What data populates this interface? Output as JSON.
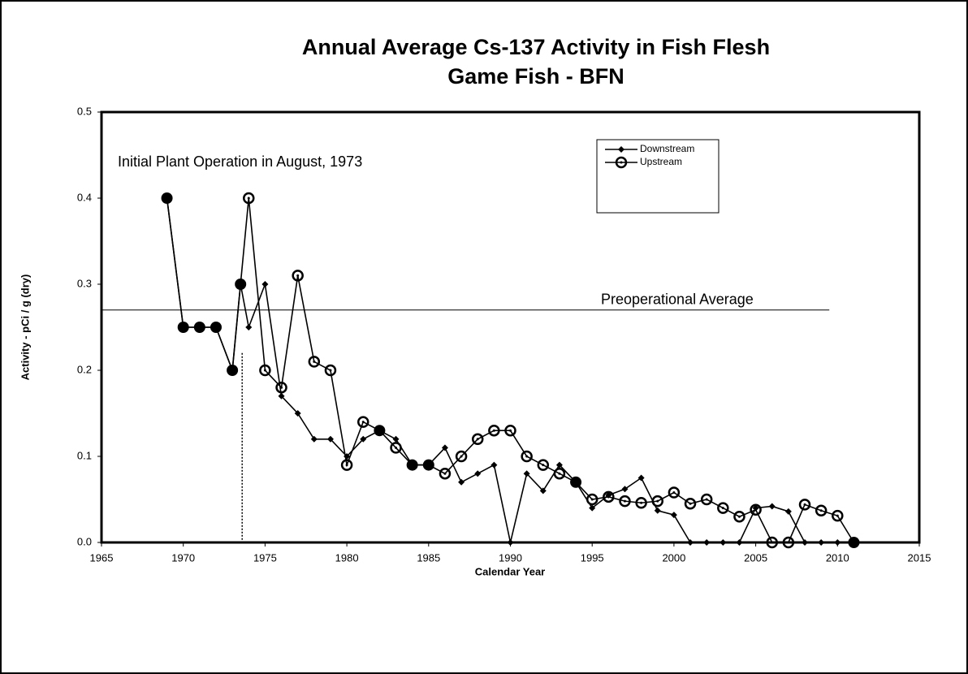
{
  "chart_data": {
    "type": "line",
    "title": "Annual Average Cs-137 Activity in Fish Flesh",
    "subtitle": "Game Fish - BFN",
    "xlabel": "Calendar Year",
    "ylabel": "Activity - pCi / g (dry)",
    "xlim": [
      1965,
      2015
    ],
    "xticks": [
      1965,
      1970,
      1975,
      1980,
      1985,
      1990,
      1995,
      2000,
      2005,
      2010,
      2015
    ],
    "ylim": [
      0,
      0.5
    ],
    "yticks": [
      {
        "value": 0,
        "label": "0.0"
      },
      0.1,
      0.2,
      0.3,
      0.4,
      0.5
    ],
    "annotations": [
      {
        "text": "Initial Plant Operation in August, 1973",
        "x": 1973.6
      },
      {
        "text": "Preoperational Average",
        "y": 0.27
      }
    ],
    "legend": "upper right",
    "series": [
      {
        "name": "Downstream",
        "color": "#000000",
        "marker": "diamond",
        "x": [
          1969,
          1970,
          1971,
          1972,
          1973,
          1973.5,
          1974,
          1975,
          1976,
          1977,
          1978,
          1979,
          1980,
          1981,
          1982,
          1983,
          1984,
          1985,
          1986,
          1987,
          1988,
          1989,
          1990,
          1991,
          1992,
          1993,
          1994,
          1995,
          1996,
          1997,
          1998,
          1999,
          2000,
          2001,
          2002,
          2003,
          2004,
          2005,
          2006,
          2007,
          2008,
          2009,
          2010,
          2011
        ],
        "values": [
          0.4,
          0.25,
          0.25,
          0.25,
          0.2,
          0.3,
          0.25,
          0.3,
          0.17,
          0.15,
          0.12,
          0.12,
          0.1,
          0.12,
          0.13,
          0.12,
          0.09,
          0.09,
          0.11,
          0.07,
          0.08,
          0.09,
          0,
          0.08,
          0.06,
          0.09,
          0.07,
          0.04,
          0.055,
          0.062,
          0.075,
          0.037,
          0.032,
          0,
          0,
          0,
          0,
          0.04,
          0.042,
          0.036,
          0,
          0,
          0,
          0
        ]
      },
      {
        "name": "Upstream",
        "color": "#000000",
        "marker": "circle",
        "x": [
          1969,
          1970,
          1971,
          1972,
          1973,
          1973.5,
          1974,
          1975,
          1976,
          1977,
          1978,
          1979,
          1980,
          1981,
          1982,
          1983,
          1984,
          1985,
          1986,
          1987,
          1988,
          1989,
          1990,
          1991,
          1992,
          1993,
          1994,
          1995,
          1996,
          1997,
          1998,
          1999,
          2000,
          2001,
          2002,
          2003,
          2004,
          2005,
          2006,
          2007,
          2008,
          2009,
          2010,
          2011
        ],
        "values": [
          0.4,
          0.25,
          0.25,
          0.25,
          0.2,
          0.3,
          0.4,
          0.2,
          0.18,
          0.31,
          0.21,
          0.2,
          0.09,
          0.14,
          0.13,
          0.11,
          0.09,
          0.09,
          0.08,
          0.1,
          0.12,
          0.13,
          0.13,
          0.1,
          0.09,
          0.08,
          0.07,
          0.05,
          0.053,
          0.048,
          0.046,
          0.048,
          0.058,
          0.045,
          0.05,
          0.04,
          0.03,
          0.038,
          0,
          0,
          0.044,
          0.037,
          0.031,
          0
        ]
      }
    ]
  }
}
